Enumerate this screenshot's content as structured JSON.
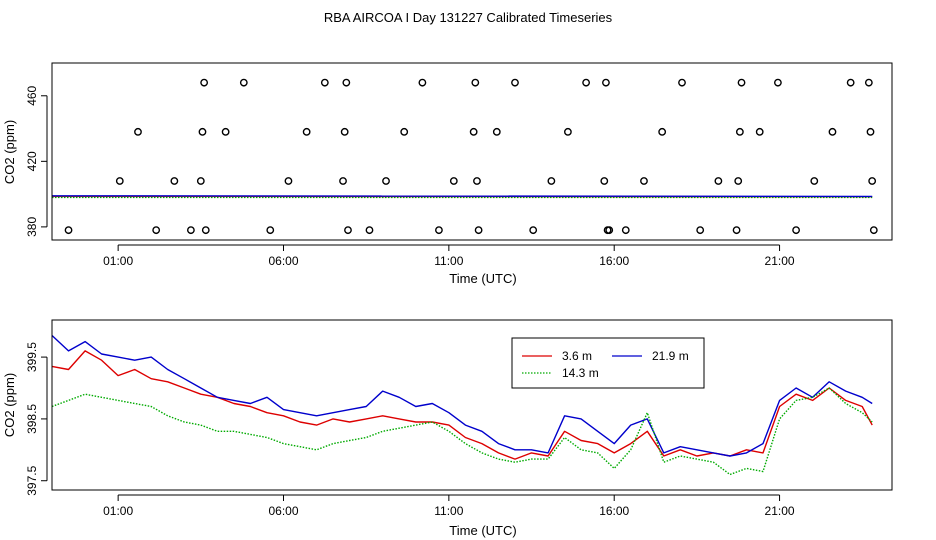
{
  "title": "RBA AIRCOA I  Day 131227  Calibrated Timeseries",
  "chart_data": [
    {
      "type": "scatter",
      "xlabel": "Time (UTC)",
      "ylabel": "CO2 (ppm)",
      "xlim": [
        -1.0,
        24.4
      ],
      "ylim": [
        372,
        480
      ],
      "xticks": [
        1,
        6,
        11,
        16,
        21
      ],
      "xtick_labels": [
        "01:00",
        "06:00",
        "11:00",
        "16:00",
        "21:00"
      ],
      "yticks": [
        380,
        420,
        460
      ],
      "ytick_labels": [
        "380",
        "420",
        "460"
      ],
      "grid": false,
      "markers": {
        "name": "calibration points",
        "x": [
          -0.5,
          1.05,
          1.6,
          2.15,
          2.7,
          3.2,
          3.5,
          3.55,
          3.6,
          3.65,
          4.25,
          4.8,
          5.6,
          6.15,
          6.7,
          7.25,
          7.8,
          7.85,
          7.9,
          7.95,
          8.6,
          9.1,
          9.65,
          10.2,
          10.7,
          11.15,
          11.75,
          11.8,
          11.85,
          11.9,
          12.45,
          13.0,
          13.55,
          14.1,
          14.6,
          15.15,
          15.7,
          15.75,
          15.8,
          15.85,
          16.35,
          16.9,
          17.45,
          18.05,
          18.6,
          19.15,
          19.7,
          19.75,
          19.8,
          19.85,
          20.4,
          20.95,
          21.5,
          22.05,
          22.6,
          23.15,
          23.7,
          23.75,
          23.8,
          23.85
        ],
        "y": [
          378,
          408,
          438,
          378,
          408,
          378,
          408,
          438,
          468,
          378,
          438,
          468,
          378,
          408,
          438,
          468,
          408,
          438,
          468,
          378,
          378,
          408,
          438,
          468,
          378,
          408,
          438,
          468,
          408,
          378,
          438,
          468,
          378,
          408,
          438,
          468,
          408,
          468,
          378,
          378,
          378,
          408,
          438,
          468,
          378,
          408,
          378,
          408,
          438,
          468,
          438,
          468,
          378,
          408,
          438,
          468,
          468,
          438,
          408,
          378
        ],
        "color": "#000000"
      },
      "series": [
        {
          "color": "#dd0000",
          "x": [
            -1.0,
            23.8
          ],
          "values": [
            398.6,
            398.4
          ]
        },
        {
          "color": "#00aa00",
          "x": [
            -1.0,
            23.8
          ],
          "values": [
            398.0,
            398.0
          ]
        },
        {
          "color": "#0000cc",
          "x": [
            -1.0,
            23.8
          ],
          "values": [
            399.0,
            398.6
          ]
        }
      ]
    },
    {
      "type": "line",
      "xlabel": "Time (UTC)",
      "ylabel": "CO2 (ppm)",
      "xlim": [
        -1.0,
        24.4
      ],
      "ylim": [
        397.35,
        400.1
      ],
      "xticks": [
        1,
        6,
        11,
        16,
        21
      ],
      "xtick_labels": [
        "01:00",
        "06:00",
        "11:00",
        "16:00",
        "21:00"
      ],
      "yticks": [
        397.5,
        398.5,
        399.5
      ],
      "ytick_labels": [
        "397.5",
        "398.5",
        "399.5"
      ],
      "grid": false,
      "legend_placement": "top-center",
      "legend_entries": [
        "3.6 m",
        "21.9 m",
        "14.3 m"
      ],
      "series": [
        {
          "name": "3.6 m",
          "color": "#dd0000",
          "x": [
            -1.0,
            -0.5,
            0.0,
            0.5,
            1.0,
            1.5,
            2.0,
            2.5,
            3.0,
            3.5,
            4.0,
            4.5,
            5.0,
            5.5,
            6.0,
            6.5,
            7.0,
            7.5,
            8.0,
            8.5,
            9.0,
            9.5,
            10.0,
            10.5,
            11.0,
            11.5,
            12.0,
            12.5,
            13.0,
            13.5,
            14.0,
            14.5,
            15.0,
            15.5,
            16.0,
            16.5,
            17.0,
            17.5,
            18.0,
            18.5,
            19.0,
            19.5,
            20.0,
            20.5,
            21.0,
            21.5,
            22.0,
            22.5,
            23.0,
            23.5,
            23.8
          ],
          "values": [
            399.35,
            399.3,
            399.6,
            399.45,
            399.2,
            399.3,
            399.15,
            399.1,
            399.0,
            398.9,
            398.85,
            398.75,
            398.7,
            398.6,
            398.55,
            398.45,
            398.4,
            398.5,
            398.45,
            398.5,
            398.55,
            398.5,
            398.45,
            398.45,
            398.4,
            398.2,
            398.1,
            397.95,
            397.85,
            397.95,
            397.9,
            398.3,
            398.15,
            398.1,
            397.95,
            398.1,
            398.3,
            397.9,
            398.0,
            397.9,
            397.95,
            397.9,
            398.0,
            397.95,
            398.7,
            398.9,
            398.8,
            399.0,
            398.8,
            398.7,
            398.4
          ]
        },
        {
          "name": "21.9 m",
          "color": "#0000cc",
          "x": [
            -1.0,
            -0.5,
            0.0,
            0.5,
            1.0,
            1.5,
            2.0,
            2.5,
            3.0,
            3.5,
            4.0,
            4.5,
            5.0,
            5.5,
            6.0,
            6.5,
            7.0,
            7.5,
            8.0,
            8.5,
            9.0,
            9.5,
            10.0,
            10.5,
            11.0,
            11.5,
            12.0,
            12.5,
            13.0,
            13.5,
            14.0,
            14.5,
            15.0,
            15.5,
            16.0,
            16.5,
            17.0,
            17.5,
            18.0,
            18.5,
            19.0,
            19.5,
            20.0,
            20.5,
            21.0,
            21.5,
            22.0,
            22.5,
            23.0,
            23.5,
            23.8
          ],
          "values": [
            399.85,
            399.6,
            399.75,
            399.55,
            399.5,
            399.45,
            399.5,
            399.3,
            399.15,
            399.0,
            398.85,
            398.8,
            398.75,
            398.85,
            398.65,
            398.6,
            398.55,
            398.6,
            398.65,
            398.7,
            398.95,
            398.85,
            398.7,
            398.75,
            398.6,
            398.4,
            398.3,
            398.1,
            398.0,
            398.0,
            397.95,
            398.55,
            398.5,
            398.3,
            398.1,
            398.4,
            398.5,
            397.95,
            398.05,
            398.0,
            397.95,
            397.9,
            397.95,
            398.1,
            398.8,
            399.0,
            398.85,
            399.1,
            398.95,
            398.85,
            398.75
          ]
        },
        {
          "name": "14.3 m",
          "color": "#00aa00",
          "x": [
            -1.0,
            -0.5,
            0.0,
            0.5,
            1.0,
            1.5,
            2.0,
            2.5,
            3.0,
            3.5,
            4.0,
            4.5,
            5.0,
            5.5,
            6.0,
            6.5,
            7.0,
            7.5,
            8.0,
            8.5,
            9.0,
            9.5,
            10.0,
            10.5,
            11.0,
            11.5,
            12.0,
            12.5,
            13.0,
            13.5,
            14.0,
            14.5,
            15.0,
            15.5,
            16.0,
            16.5,
            17.0,
            17.5,
            18.0,
            18.5,
            19.0,
            19.5,
            20.0,
            20.5,
            21.0,
            21.5,
            22.0,
            22.5,
            23.0,
            23.5,
            23.8
          ],
          "values": [
            398.7,
            398.8,
            398.9,
            398.85,
            398.8,
            398.75,
            398.7,
            398.55,
            398.45,
            398.4,
            398.3,
            398.3,
            398.25,
            398.2,
            398.1,
            398.05,
            398.0,
            398.1,
            398.15,
            398.2,
            398.3,
            398.35,
            398.4,
            398.45,
            398.3,
            398.1,
            397.95,
            397.85,
            397.8,
            397.85,
            397.85,
            398.2,
            398.0,
            397.95,
            397.7,
            398.0,
            398.6,
            397.8,
            397.9,
            397.85,
            397.8,
            397.6,
            397.7,
            397.65,
            398.5,
            398.8,
            398.85,
            399.0,
            398.75,
            398.6,
            398.45
          ]
        }
      ]
    }
  ]
}
